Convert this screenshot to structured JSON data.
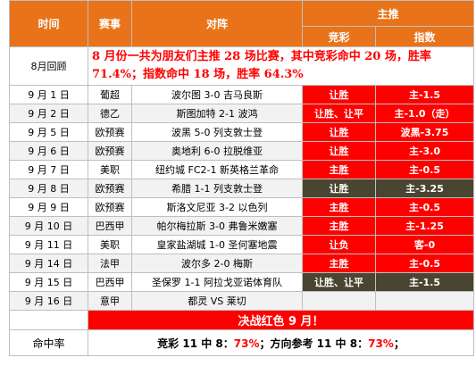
{
  "header": {
    "time": "时间",
    "league": "赛事",
    "match": "对阵",
    "recommend": "主推",
    "jingcai": "竞彩",
    "zhishu": "指数"
  },
  "review": {
    "label": "8月回顾",
    "text": "8 月份一共为朋友们主推 28 场比赛，其中竞彩命中 20 场，胜率 71.4%；指数命中 18 场，胜率 64.3%"
  },
  "rows": [
    {
      "date": "9 月 1 日",
      "league": "葡超",
      "match": "波尔图 3-0 吉马良斯",
      "jingcai": "让胜",
      "zhishu": "主-1.5"
    },
    {
      "date": "9 月 2 日",
      "league": "德乙",
      "match": "斯图加特 2-1 波鸿",
      "jingcai": "让胜、让平",
      "zhishu": "主-1.0（走）"
    },
    {
      "date": "9 月 5 日",
      "league": "欧预赛",
      "match": "波黑 5-0 列支敦士登",
      "jingcai": "让胜",
      "zhishu": "波黑-3.75"
    },
    {
      "date": "9 月 6 日",
      "league": "欧预赛",
      "match": "奥地利 6-0 拉脱维亚",
      "jingcai": "让胜",
      "zhishu": "主-3.0"
    },
    {
      "date": "9 月 7 日",
      "league": "美职",
      "match": "纽约城 FC2-1 新英格兰革命",
      "jingcai": "主胜",
      "zhishu": "主-0.5"
    },
    {
      "date": "9 月 8 日",
      "league": "欧预赛",
      "match": "希腊 1-1 列支敦士登",
      "jingcai": "让胜",
      "zhishu": "主-3.25"
    },
    {
      "date": "9 月 9 日",
      "league": "欧预赛",
      "match": "斯洛文尼亚 3-2 以色列",
      "jingcai": "主胜",
      "zhishu": "主-0.5"
    },
    {
      "date": "9 月 10 日",
      "league": "巴西甲",
      "match": "帕尔梅拉斯 3-0 弗鲁米嫩塞",
      "jingcai": "主胜",
      "zhishu": "主-1.25"
    },
    {
      "date": "9 月 11 日",
      "league": "美职",
      "match": "皇家盐湖城 1-0 圣何塞地震",
      "jingcai": "让负",
      "zhishu": "客-0"
    },
    {
      "date": "9 月 14 日",
      "league": "法甲",
      "match": "波尔多 2-0 梅斯",
      "jingcai": "主胜",
      "zhishu": "主-0.5"
    },
    {
      "date": "9 月 15 日",
      "league": "巴西甲",
      "match": "圣保罗 1-1 阿拉戈亚诺体育队",
      "jingcai": "让胜、让平",
      "zhishu": "主-1.5"
    },
    {
      "date": "9 月 16 日",
      "league": "意甲",
      "match": "都灵 VS 莱切"
    }
  ],
  "banner": "决战红色 9 月！",
  "summary": {
    "label": "命中率",
    "parts": [
      "竞彩 11 中 8：",
      "73%",
      "；方向参考 11 中 8：",
      "73%",
      "；"
    ]
  }
}
